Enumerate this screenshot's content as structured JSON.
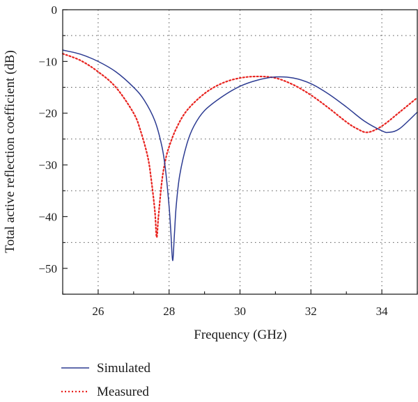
{
  "chart_data": {
    "type": "line",
    "xlabel": "Frequency (GHz)",
    "ylabel": "Total active reflection coefficient (dB)",
    "xlim": [
      25,
      35
    ],
    "ylim": [
      -55,
      0
    ],
    "x_ticks": [
      26,
      28,
      30,
      32,
      34
    ],
    "y_ticks": [
      0,
      -10,
      -20,
      -30,
      -40,
      -50
    ],
    "grid": true,
    "legend_position": "bottom-left, below plot",
    "series": [
      {
        "name": "Simulated",
        "color": "#2b3a91",
        "style": "solid",
        "x": [
          25.0,
          25.5,
          26.0,
          26.5,
          27.0,
          27.3,
          27.6,
          27.8,
          27.9,
          28.0,
          28.05,
          28.1,
          28.15,
          28.2,
          28.3,
          28.5,
          28.7,
          29.0,
          29.5,
          30.0,
          30.5,
          31.0,
          31.5,
          32.0,
          32.5,
          33.0,
          33.5,
          34.0,
          34.2,
          34.5,
          35.0
        ],
        "y": [
          -7.8,
          -8.6,
          -10.0,
          -12.0,
          -15.0,
          -17.5,
          -21.5,
          -26.5,
          -31.0,
          -38.0,
          -43.0,
          -48.5,
          -43.5,
          -38.0,
          -32.0,
          -26.0,
          -22.5,
          -19.5,
          -16.8,
          -14.8,
          -13.6,
          -13.0,
          -13.2,
          -14.3,
          -16.3,
          -18.8,
          -21.5,
          -23.4,
          -23.7,
          -23.0,
          -19.8
        ]
      },
      {
        "name": "Measured",
        "color": "#e8231f",
        "style": "dotted",
        "x": [
          25.0,
          25.5,
          26.0,
          26.5,
          27.0,
          27.2,
          27.4,
          27.5,
          27.6,
          27.65,
          27.7,
          27.8,
          27.9,
          28.0,
          28.2,
          28.5,
          29.0,
          29.5,
          30.0,
          30.5,
          31.0,
          31.5,
          32.0,
          32.5,
          33.0,
          33.3,
          33.6,
          34.0,
          34.5,
          35.0
        ],
        "y": [
          -8.5,
          -9.8,
          -12.0,
          -15.0,
          -20.0,
          -23.5,
          -28.5,
          -33.0,
          -39.0,
          -44.0,
          -40.0,
          -33.0,
          -29.0,
          -26.5,
          -23.0,
          -19.5,
          -16.2,
          -14.2,
          -13.2,
          -12.9,
          -13.2,
          -14.5,
          -16.5,
          -19.0,
          -21.7,
          -23.0,
          -23.7,
          -22.5,
          -19.8,
          -17.0
        ]
      }
    ]
  }
}
